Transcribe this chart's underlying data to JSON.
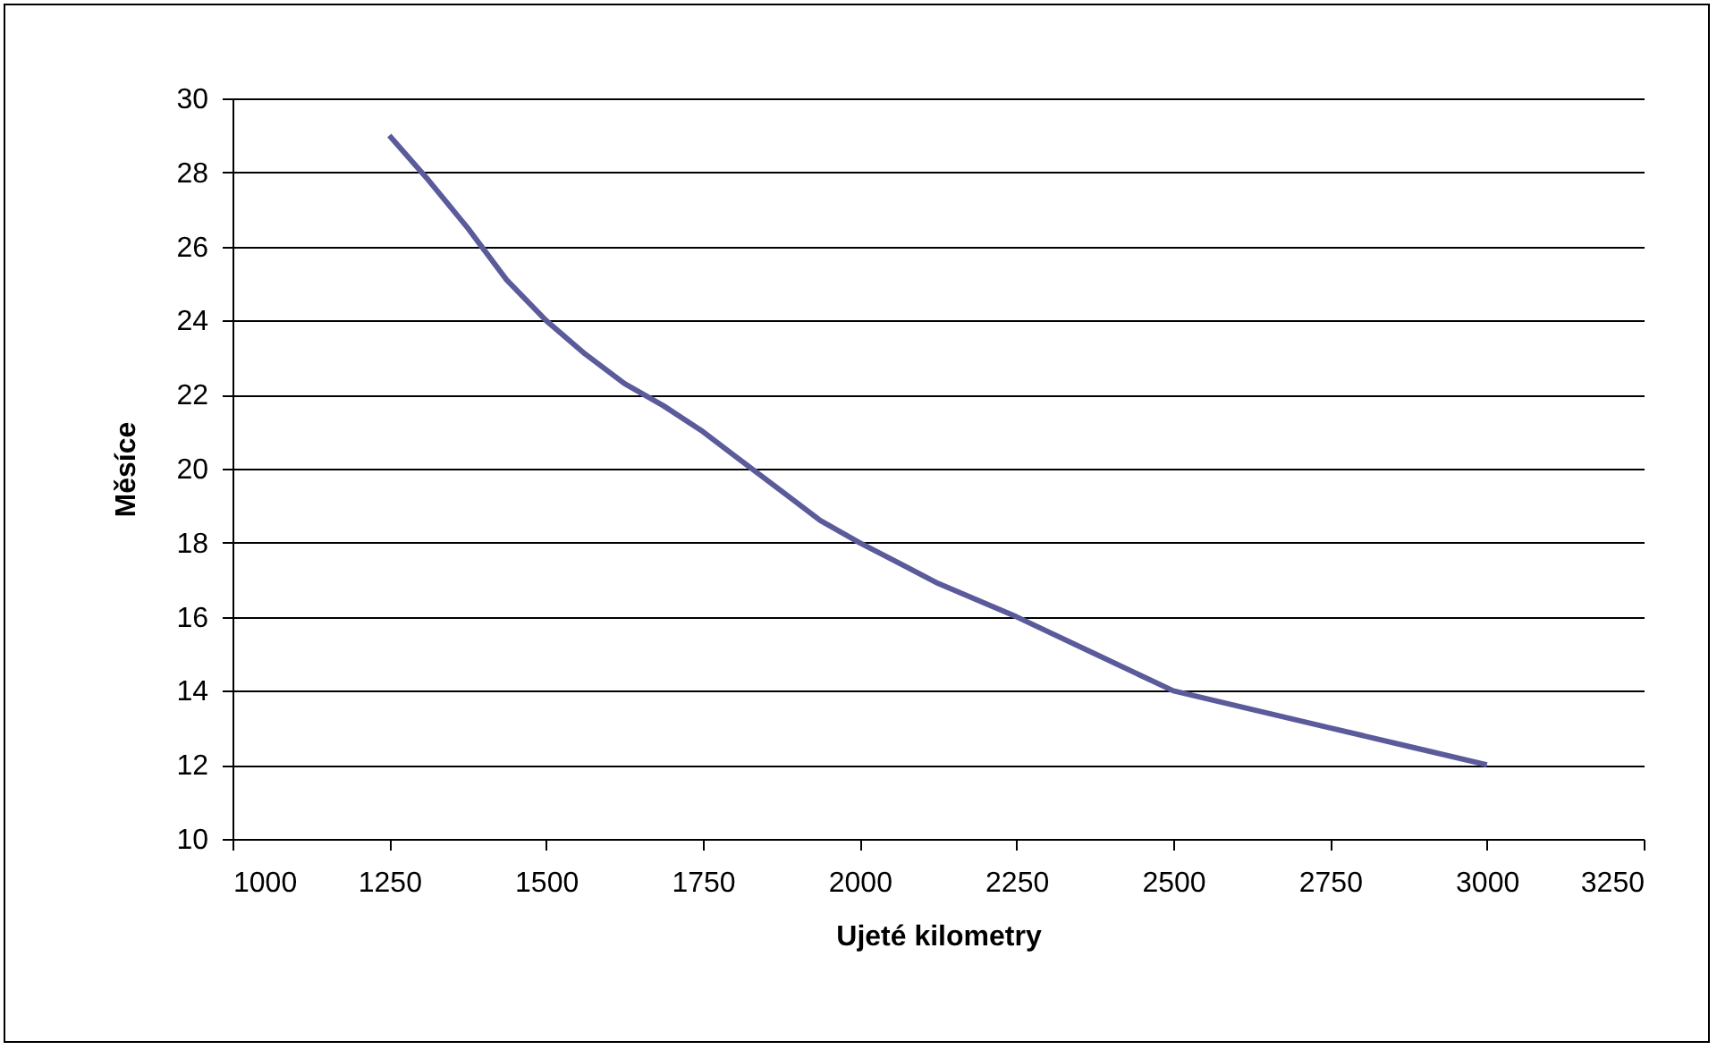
{
  "chart_data": {
    "type": "line",
    "xlabel": "Ujeté kilometry",
    "ylabel": "Měsíce",
    "x": [
      1250,
      1312,
      1375,
      1437,
      1500,
      1562,
      1625,
      1687,
      1750,
      1812,
      1875,
      1937,
      2000,
      2125,
      2250,
      2375,
      2500,
      2625,
      2750,
      2875,
      3000
    ],
    "series": [
      {
        "color": "#5b5b9b",
        "values": [
          29,
          27.8,
          26.5,
          25.1,
          24,
          23.1,
          22.3,
          21.7,
          21,
          20.2,
          19.4,
          18.6,
          18,
          16.9,
          16,
          15,
          14,
          13.5,
          13,
          12.5,
          12
        ]
      }
    ],
    "xlim": [
      1000,
      3250
    ],
    "xticks": [
      1000,
      1250,
      1500,
      1750,
      2000,
      2250,
      2500,
      2750,
      3000,
      3250
    ],
    "ylim": [
      10,
      30
    ],
    "yticks": [
      10,
      12,
      14,
      16,
      18,
      20,
      22,
      24,
      26,
      28,
      30
    ],
    "grid": "y",
    "legend": false,
    "marker": "none",
    "line_style": "solid"
  }
}
